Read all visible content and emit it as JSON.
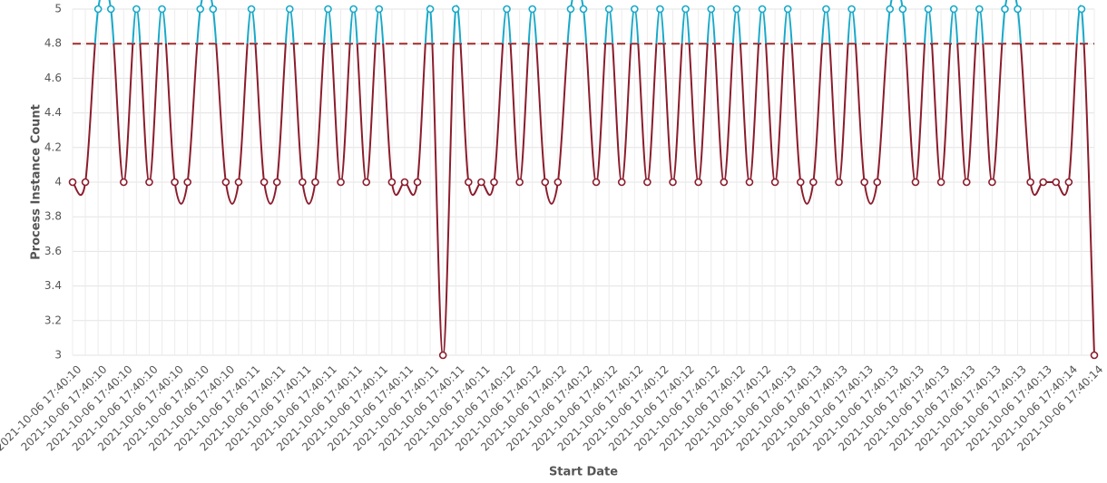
{
  "chart_data": {
    "type": "line",
    "ylabel": "Process Instance Count",
    "xlabel": "Start Date",
    "categories": [
      "2021-10-06 17:40:10",
      null,
      "2021-10-06 17:40:10",
      null,
      "2021-10-06 17:40:10",
      null,
      "2021-10-06 17:40:10",
      null,
      "2021-10-06 17:40:10",
      null,
      "2021-10-06 17:40:10",
      null,
      "2021-10-06 17:40:10",
      null,
      "2021-10-06 17:40:11",
      null,
      "2021-10-06 17:40:11",
      null,
      "2021-10-06 17:40:11",
      null,
      "2021-10-06 17:40:11",
      null,
      "2021-10-06 17:40:11",
      null,
      "2021-10-06 17:40:11",
      null,
      "2021-10-06 17:40:11",
      null,
      "2021-10-06 17:40:11",
      null,
      "2021-10-06 17:40:11",
      null,
      "2021-10-06 17:40:11",
      null,
      "2021-10-06 17:40:12",
      null,
      "2021-10-06 17:40:12",
      null,
      "2021-10-06 17:40:12",
      null,
      "2021-10-06 17:40:12",
      null,
      "2021-10-06 17:40:12",
      null,
      "2021-10-06 17:40:12",
      null,
      "2021-10-06 17:40:12",
      null,
      "2021-10-06 17:40:12",
      null,
      "2021-10-06 17:40:12",
      null,
      "2021-10-06 17:40:12",
      null,
      "2021-10-06 17:40:12",
      null,
      "2021-10-06 17:40:13",
      null,
      "2021-10-06 17:40:13",
      null,
      "2021-10-06 17:40:13",
      null,
      "2021-10-06 17:40:13",
      null,
      "2021-10-06 17:40:13",
      null,
      "2021-10-06 17:40:13",
      null,
      "2021-10-06 17:40:13",
      null,
      "2021-10-06 17:40:13",
      null,
      "2021-10-06 17:40:13",
      null,
      "2021-10-06 17:40:13",
      null,
      "2021-10-06 17:40:13",
      null,
      "2021-10-06 17:40:14",
      null,
      "2021-10-06 17:40:14"
    ],
    "series": [
      {
        "color": "#8b1c2c",
        "above_color": "#17a9c9",
        "values": [
          4,
          4,
          5,
          5,
          4,
          5,
          4,
          5,
          4,
          4,
          5,
          5,
          4,
          4,
          5,
          4,
          4,
          5,
          4,
          4,
          5,
          4,
          5,
          4,
          5,
          4,
          4,
          4,
          5,
          3,
          5,
          4,
          4,
          4,
          5,
          4,
          5,
          4,
          4,
          5,
          5,
          4,
          5,
          4,
          5,
          4,
          5,
          4,
          5,
          4,
          5,
          4,
          5,
          4,
          5,
          4,
          5,
          4,
          4,
          5,
          4,
          5,
          4,
          4,
          5,
          5,
          4,
          5,
          4,
          5,
          4,
          5,
          4,
          5,
          5,
          4,
          4,
          4,
          4,
          5,
          3
        ]
      }
    ],
    "threshold": 4.8,
    "threshold_color": "#a12a2a",
    "ylim": [
      3,
      5
    ],
    "yticks": [
      3,
      3.2,
      3.4,
      3.6,
      3.8,
      4,
      4.2,
      4.4,
      4.6,
      4.8,
      5
    ],
    "grid": true
  }
}
